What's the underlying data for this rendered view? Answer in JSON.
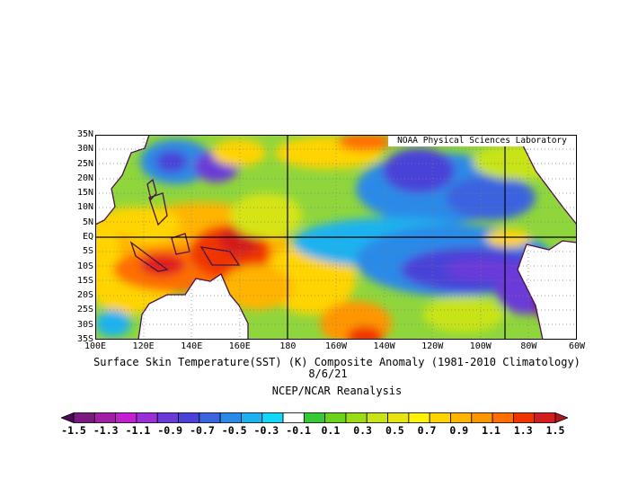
{
  "map": {
    "credit": "NOAA Physical Sciences Laboratory",
    "lat_labels": [
      "35N",
      "30N",
      "25N",
      "20N",
      "15N",
      "10N",
      "5N",
      "EQ",
      "5S",
      "10S",
      "15S",
      "20S",
      "25S",
      "30S",
      "35S"
    ],
    "lon_labels": [
      "100E",
      "120E",
      "140E",
      "160E",
      "180",
      "160W",
      "140W",
      "120W",
      "100W",
      "80W",
      "60W"
    ],
    "lat_range": [
      -35,
      35
    ],
    "lon_range": [
      100,
      300
    ]
  },
  "titles": {
    "main": "Surface Skin Temperature(SST) (K) Composite Anomaly (1981-2010 Climatology)",
    "date": "8/6/21",
    "source": "NCEP/NCAR Reanalysis"
  },
  "colorbar": {
    "labels": [
      "-1.5",
      "-1.3",
      "-1.1",
      "-0.9",
      "-0.7",
      "-0.5",
      "-0.3",
      "-0.1",
      "0.1",
      "0.3",
      "0.5",
      "0.7",
      "0.9",
      "1.1",
      "1.3",
      "1.5"
    ],
    "colors": [
      "#4a0a55",
      "#7a1a7f",
      "#a01fa5",
      "#c21fd0",
      "#9a2fd8",
      "#6a3ad8",
      "#4a42d8",
      "#3a64e0",
      "#2a8ae8",
      "#1ab2f0",
      "#14d6f6",
      "#ffffff",
      "#35c935",
      "#6ad21d",
      "#9bdc14",
      "#c8e414",
      "#e8e414",
      "#fff20a",
      "#ffd400",
      "#ffb400",
      "#ff9600",
      "#ff6e00",
      "#f03400",
      "#d21e1e",
      "#b4141e"
    ]
  }
}
